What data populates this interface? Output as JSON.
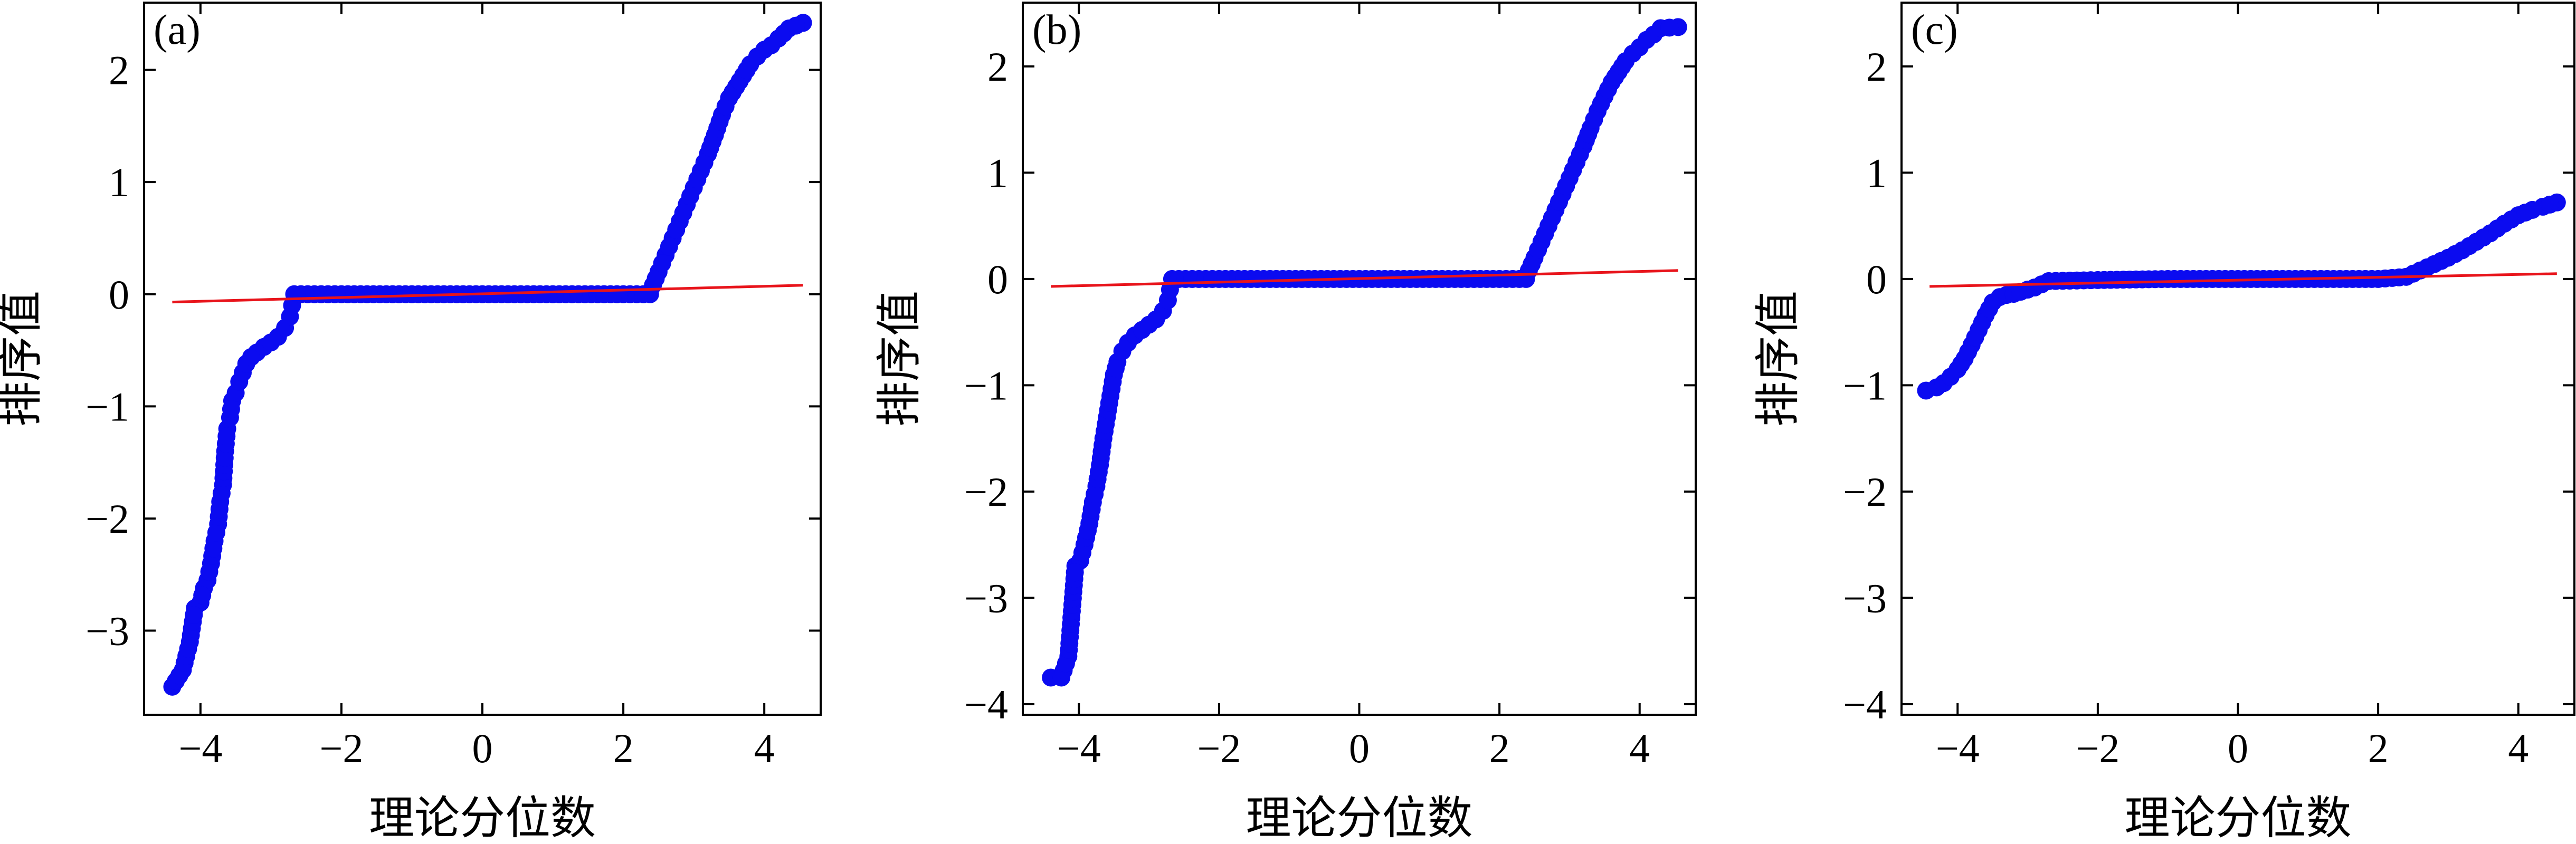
{
  "chart_data": [
    {
      "type": "scatter",
      "panel_label": "(a)",
      "xlabel": "理论分位数",
      "ylabel": "排序值",
      "xlim": [
        -4.8,
        4.8
      ],
      "ylim": [
        -3.75,
        2.6
      ],
      "xticks": [
        -4,
        -2,
        0,
        2,
        4
      ],
      "yticks": [
        -3,
        -2,
        -1,
        0,
        1,
        2
      ],
      "xtick_labels": [
        "−4",
        "−2",
        "0",
        "2",
        "4"
      ],
      "ytick_labels": [
        "−3",
        "−2",
        "−1",
        "0",
        "1",
        "2"
      ],
      "points": [
        [
          -4.4,
          -3.5
        ],
        [
          -4.25,
          -3.35
        ],
        [
          -4.15,
          -3.1
        ],
        [
          -4.08,
          -2.8
        ],
        [
          -4.0,
          -2.75
        ],
        [
          -3.95,
          -2.62
        ],
        [
          -3.9,
          -2.55
        ],
        [
          -3.85,
          -2.4
        ],
        [
          -3.8,
          -2.2
        ],
        [
          -3.75,
          -2.05
        ],
        [
          -3.72,
          -1.85
        ],
        [
          -3.68,
          -1.7
        ],
        [
          -3.65,
          -1.4
        ],
        [
          -3.62,
          -1.2
        ],
        [
          -3.58,
          -1.1
        ],
        [
          -3.55,
          -0.95
        ],
        [
          -3.5,
          -0.88
        ],
        [
          -3.45,
          -0.78
        ],
        [
          -3.4,
          -0.7
        ],
        [
          -3.35,
          -0.62
        ],
        [
          -3.28,
          -0.56
        ],
        [
          -3.2,
          -0.52
        ],
        [
          -3.1,
          -0.47
        ],
        [
          -3.0,
          -0.43
        ],
        [
          -2.9,
          -0.38
        ],
        [
          -2.8,
          -0.3
        ],
        [
          -2.73,
          -0.2
        ],
        [
          -2.7,
          -0.1
        ],
        [
          -2.67,
          0.0
        ],
        [
          -2.0,
          0.0
        ],
        [
          -1.0,
          0.0
        ],
        [
          0.0,
          0.0
        ],
        [
          1.0,
          0.0
        ],
        [
          2.0,
          0.0
        ],
        [
          2.38,
          0.0
        ],
        [
          2.42,
          0.08
        ],
        [
          2.5,
          0.2
        ],
        [
          2.6,
          0.35
        ],
        [
          2.7,
          0.5
        ],
        [
          2.8,
          0.65
        ],
        [
          2.9,
          0.8
        ],
        [
          3.0,
          0.95
        ],
        [
          3.1,
          1.1
        ],
        [
          3.2,
          1.25
        ],
        [
          3.3,
          1.42
        ],
        [
          3.4,
          1.6
        ],
        [
          3.5,
          1.75
        ],
        [
          3.6,
          1.85
        ],
        [
          3.7,
          1.95
        ],
        [
          3.8,
          2.05
        ],
        [
          3.9,
          2.12
        ],
        [
          4.0,
          2.18
        ],
        [
          4.1,
          2.22
        ],
        [
          4.2,
          2.28
        ],
        [
          4.35,
          2.37
        ],
        [
          4.55,
          2.42
        ]
      ],
      "fit_line": {
        "x": [
          -4.4,
          4.55
        ],
        "y": [
          -0.07,
          0.08
        ]
      }
    },
    {
      "type": "scatter",
      "panel_label": "(b)",
      "xlabel": "理论分位数",
      "ylabel": "排序值",
      "xlim": [
        -4.8,
        4.8
      ],
      "ylim": [
        -4.1,
        2.6
      ],
      "xticks": [
        -4,
        -2,
        0,
        2,
        4
      ],
      "yticks": [
        -4,
        -3,
        -2,
        -1,
        0,
        1,
        2
      ],
      "xtick_labels": [
        "−4",
        "−2",
        "0",
        "2",
        "4"
      ],
      "ytick_labels": [
        "−4",
        "−3",
        "−2",
        "−1",
        "0",
        "1",
        "2"
      ],
      "points": [
        [
          -4.4,
          -3.75
        ],
        [
          -4.25,
          -3.75
        ],
        [
          -4.15,
          -3.55
        ],
        [
          -4.05,
          -2.7
        ],
        [
          -3.98,
          -2.65
        ],
        [
          -3.92,
          -2.5
        ],
        [
          -3.85,
          -2.3
        ],
        [
          -3.8,
          -2.1
        ],
        [
          -3.75,
          -1.95
        ],
        [
          -3.7,
          -1.75
        ],
        [
          -3.65,
          -1.5
        ],
        [
          -3.6,
          -1.3
        ],
        [
          -3.55,
          -1.1
        ],
        [
          -3.5,
          -0.9
        ],
        [
          -3.45,
          -0.78
        ],
        [
          -3.38,
          -0.68
        ],
        [
          -3.3,
          -0.6
        ],
        [
          -3.2,
          -0.53
        ],
        [
          -3.1,
          -0.48
        ],
        [
          -3.0,
          -0.43
        ],
        [
          -2.9,
          -0.38
        ],
        [
          -2.8,
          -0.3
        ],
        [
          -2.73,
          -0.2
        ],
        [
          -2.7,
          -0.1
        ],
        [
          -2.67,
          0.0
        ],
        [
          -2.0,
          0.0
        ],
        [
          -1.0,
          0.0
        ],
        [
          0.0,
          0.0
        ],
        [
          1.0,
          0.0
        ],
        [
          2.0,
          0.0
        ],
        [
          2.38,
          0.0
        ],
        [
          2.42,
          0.08
        ],
        [
          2.5,
          0.2
        ],
        [
          2.6,
          0.35
        ],
        [
          2.7,
          0.5
        ],
        [
          2.8,
          0.65
        ],
        [
          2.9,
          0.8
        ],
        [
          3.0,
          0.95
        ],
        [
          3.1,
          1.1
        ],
        [
          3.2,
          1.25
        ],
        [
          3.3,
          1.42
        ],
        [
          3.4,
          1.58
        ],
        [
          3.5,
          1.72
        ],
        [
          3.6,
          1.85
        ],
        [
          3.7,
          1.95
        ],
        [
          3.8,
          2.05
        ],
        [
          3.9,
          2.12
        ],
        [
          4.0,
          2.18
        ],
        [
          4.1,
          2.25
        ],
        [
          4.2,
          2.3
        ],
        [
          4.3,
          2.36
        ],
        [
          4.55,
          2.37
        ]
      ],
      "fit_line": {
        "x": [
          -4.4,
          4.55
        ],
        "y": [
          -0.07,
          0.08
        ]
      }
    },
    {
      "type": "scatter",
      "panel_label": "(c)",
      "xlabel": "理论分位数",
      "ylabel": "排序值",
      "xlim": [
        -4.8,
        4.8
      ],
      "ylim": [
        -4.1,
        2.6
      ],
      "xticks": [
        -4,
        -2,
        0,
        2,
        4
      ],
      "yticks": [
        -4,
        -3,
        -2,
        -1,
        0,
        1,
        2
      ],
      "xtick_labels": [
        "−4",
        "−2",
        "0",
        "2",
        "4"
      ],
      "ytick_labels": [
        "−4",
        "−3",
        "−2",
        "−1",
        "0",
        "1",
        "2"
      ],
      "points": [
        [
          -4.45,
          -1.05
        ],
        [
          -4.3,
          -1.02
        ],
        [
          -4.2,
          -0.98
        ],
        [
          -4.1,
          -0.92
        ],
        [
          -4.0,
          -0.85
        ],
        [
          -3.9,
          -0.75
        ],
        [
          -3.8,
          -0.62
        ],
        [
          -3.7,
          -0.48
        ],
        [
          -3.6,
          -0.34
        ],
        [
          -3.5,
          -0.22
        ],
        [
          -3.4,
          -0.17
        ],
        [
          -3.3,
          -0.15
        ],
        [
          -3.2,
          -0.14
        ],
        [
          -3.1,
          -0.12
        ],
        [
          -3.0,
          -0.1
        ],
        [
          -2.9,
          -0.08
        ],
        [
          -2.8,
          -0.05
        ],
        [
          -2.7,
          -0.02
        ],
        [
          -2.0,
          -0.01
        ],
        [
          -1.0,
          0.0
        ],
        [
          0.0,
          0.0
        ],
        [
          1.0,
          0.0
        ],
        [
          2.0,
          0.0
        ],
        [
          2.4,
          0.02
        ],
        [
          2.6,
          0.08
        ],
        [
          2.8,
          0.14
        ],
        [
          3.0,
          0.2
        ],
        [
          3.2,
          0.27
        ],
        [
          3.4,
          0.35
        ],
        [
          3.6,
          0.43
        ],
        [
          3.8,
          0.52
        ],
        [
          4.0,
          0.6
        ],
        [
          4.2,
          0.65
        ],
        [
          4.35,
          0.68
        ],
        [
          4.55,
          0.72
        ]
      ],
      "fit_line": {
        "x": [
          -4.4,
          4.55
        ],
        "y": [
          -0.07,
          0.05
        ]
      }
    }
  ]
}
